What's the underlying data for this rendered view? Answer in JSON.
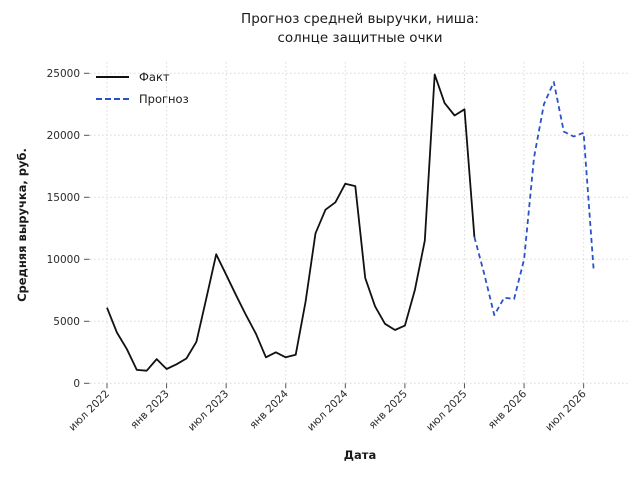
{
  "chart_data": {
    "type": "line",
    "title_lines": [
      "Прогноз средней выручки, ниша:",
      "солнце защитные очки"
    ],
    "xlabel": "Дата",
    "ylabel": "Средняя выручка, руб.",
    "ylim": [
      0,
      25000
    ],
    "y_ticks": [
      0,
      5000,
      10000,
      15000,
      20000,
      25000
    ],
    "x_tick_labels": [
      "июл 2022",
      "янв 2023",
      "июл 2023",
      "янв 2024",
      "июл 2024",
      "янв 2025",
      "июл 2025",
      "янв 2026",
      "июл 2026"
    ],
    "x_tick_month_indices": [
      0,
      6,
      12,
      18,
      24,
      30,
      36,
      42,
      48
    ],
    "months_start": "2022-07",
    "grid": true,
    "legend_position": "upper left",
    "colors": {
      "fact": "#111111",
      "forecast": "#2a52c8",
      "grid": "#d9d9d9",
      "tick": "#555555",
      "text": "#2b2b2b"
    },
    "series": [
      {
        "name": "Факт",
        "style": "solid",
        "color": "#111111",
        "start_month_index": 0,
        "months": [
          "2022-07",
          "2022-08",
          "2022-09",
          "2022-10",
          "2022-11",
          "2022-12",
          "2023-01",
          "2023-02",
          "2023-03",
          "2023-04",
          "2023-05",
          "2023-06",
          "2023-07",
          "2023-08",
          "2023-09",
          "2023-10",
          "2023-11",
          "2023-12",
          "2024-01",
          "2024-02",
          "2024-03",
          "2024-04",
          "2024-05",
          "2024-06",
          "2024-07",
          "2024-08",
          "2024-09",
          "2024-10",
          "2024-11",
          "2024-12",
          "2025-01",
          "2025-02",
          "2025-03",
          "2025-04",
          "2025-05",
          "2025-06",
          "2025-07",
          "2025-08"
        ],
        "values": [
          6100,
          4100,
          2750,
          1080,
          1020,
          1950,
          1150,
          1530,
          2000,
          3350,
          6850,
          10400,
          8750,
          7100,
          5500,
          4000,
          2100,
          2500,
          2100,
          2300,
          6600,
          12100,
          14000,
          14600,
          16100,
          15900,
          8500,
          6200,
          4800,
          4300,
          4650,
          7500,
          11500,
          24900,
          22600,
          21600,
          22100,
          11800
        ]
      },
      {
        "name": "Прогноз",
        "style": "dashed",
        "color": "#2a52c8",
        "start_month_index": 37,
        "months": [
          "2025-08",
          "2025-09",
          "2025-10",
          "2025-11",
          "2025-12",
          "2026-01",
          "2026-02",
          "2026-03",
          "2026-04",
          "2026-05",
          "2026-06",
          "2026-07",
          "2026-08"
        ],
        "values": [
          11800,
          8800,
          5500,
          6900,
          6800,
          10000,
          18200,
          22500,
          24300,
          20300,
          19900,
          20200,
          9200
        ]
      }
    ]
  },
  "legend": {
    "items": [
      {
        "label": "Факт"
      },
      {
        "label": "Прогноз"
      }
    ]
  }
}
